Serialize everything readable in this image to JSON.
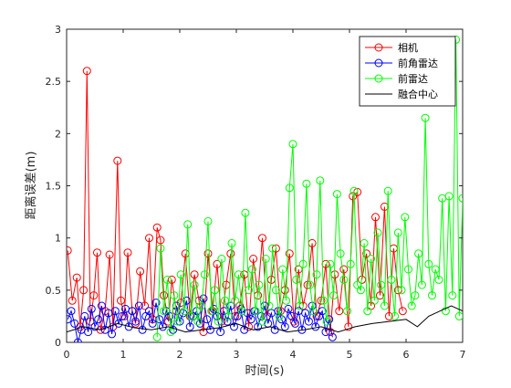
{
  "chart_data": {
    "type": "line",
    "xlabel": "时间(s)",
    "ylabel": "距离误差(m)",
    "xlim": [
      0,
      7
    ],
    "ylim": [
      0,
      3
    ],
    "xticks": [
      "0",
      "1",
      "2",
      "3",
      "4",
      "5",
      "6",
      "7"
    ],
    "yticks": [
      "0",
      "0.5",
      "1",
      "1.5",
      "2",
      "2.5",
      "3"
    ],
    "grid": false,
    "legend_position": "top-right",
    "series": [
      {
        "name": "相机",
        "color": "#ff0000",
        "marker": "circle",
        "x": [
          0.02,
          0.1,
          0.18,
          0.24,
          0.3,
          0.36,
          0.42,
          0.48,
          0.54,
          0.6,
          0.68,
          0.76,
          0.82,
          0.9,
          0.96,
          1.02,
          1.08,
          1.16,
          1.22,
          1.3,
          1.38,
          1.46,
          1.52,
          1.6,
          1.66,
          1.72,
          1.8,
          1.86,
          1.94,
          2.02,
          2.1,
          2.18,
          2.26,
          2.34,
          2.42,
          2.5,
          2.58,
          2.66,
          2.74,
          2.82,
          2.9,
          2.98,
          3.06,
          3.14,
          3.22,
          3.3,
          3.38,
          3.46,
          3.54,
          3.62,
          3.7,
          3.78,
          3.86,
          3.94,
          4.02,
          4.1,
          4.18,
          4.26,
          4.34,
          4.42,
          4.5,
          4.58,
          4.66,
          4.74,
          4.82,
          4.9,
          4.98,
          5.06,
          5.14,
          5.22,
          5.3,
          5.38,
          5.46,
          5.54,
          5.62,
          5.7,
          5.78,
          5.86,
          5.94
        ],
        "y": [
          0.88,
          0.4,
          0.62,
          0.15,
          0.5,
          2.6,
          0.2,
          0.45,
          0.86,
          0.12,
          0.3,
          0.84,
          0.15,
          1.74,
          0.4,
          0.25,
          0.86,
          0.3,
          0.18,
          0.68,
          0.35,
          1.0,
          0.22,
          1.1,
          0.98,
          0.45,
          0.2,
          0.6,
          0.3,
          0.38,
          0.85,
          0.25,
          0.65,
          0.4,
          0.1,
          0.85,
          0.3,
          0.75,
          0.2,
          0.55,
          0.85,
          0.25,
          0.35,
          0.65,
          0.15,
          0.8,
          0.45,
          1.0,
          0.25,
          0.6,
          0.9,
          0.3,
          0.5,
          0.85,
          0.2,
          0.7,
          0.35,
          0.55,
          0.95,
          0.25,
          0.4,
          0.75,
          0.1,
          0.65,
          0.3,
          0.7,
          0.15,
          1.4,
          1.44,
          0.6,
          0.85,
          0.35,
          1.2,
          0.45,
          1.3,
          0.25,
          0.9,
          0.5,
          0.3
        ]
      },
      {
        "name": "前角雷达",
        "color": "#0000ff",
        "marker": "circle",
        "x": [
          0.02,
          0.08,
          0.14,
          0.2,
          0.26,
          0.32,
          0.38,
          0.44,
          0.5,
          0.56,
          0.62,
          0.68,
          0.74,
          0.8,
          0.86,
          0.92,
          0.98,
          1.04,
          1.1,
          1.16,
          1.22,
          1.28,
          1.34,
          1.4,
          1.46,
          1.52,
          1.58,
          1.64,
          1.7,
          1.76,
          1.82,
          1.88,
          1.94,
          2.0,
          2.06,
          2.12,
          2.18,
          2.24,
          2.3,
          2.36,
          2.42,
          2.48,
          2.54,
          2.6,
          2.66,
          2.72,
          2.78,
          2.84,
          2.9,
          2.96,
          3.02,
          3.08,
          3.14,
          3.2,
          3.26,
          3.32,
          3.38,
          3.44,
          3.5,
          3.56,
          3.62,
          3.68,
          3.74,
          3.8,
          3.86,
          3.92,
          3.98,
          4.04,
          4.1,
          4.16,
          4.22,
          4.28,
          4.34,
          4.4,
          4.46,
          4.52,
          4.58,
          4.64,
          4.7
        ],
        "y": [
          0.22,
          0.3,
          0.18,
          0.0,
          0.12,
          0.25,
          0.1,
          0.32,
          0.15,
          0.22,
          0.35,
          0.12,
          0.28,
          0.08,
          0.3,
          0.18,
          0.25,
          0.32,
          0.15,
          0.3,
          0.2,
          0.35,
          0.12,
          0.25,
          0.3,
          0.18,
          0.38,
          0.22,
          0.15,
          0.3,
          0.25,
          0.12,
          0.35,
          0.2,
          0.28,
          0.4,
          0.15,
          0.25,
          0.3,
          0.18,
          0.42,
          0.22,
          0.12,
          0.32,
          0.25,
          0.1,
          0.3,
          0.2,
          0.35,
          0.15,
          0.25,
          0.32,
          0.12,
          0.28,
          0.22,
          0.3,
          0.15,
          0.25,
          0.35,
          0.18,
          0.28,
          0.12,
          0.3,
          0.22,
          0.15,
          0.32,
          0.25,
          0.18,
          0.3,
          0.12,
          0.28,
          0.2,
          0.35,
          0.15,
          0.25,
          0.3,
          0.1,
          0.22,
          0.05
        ]
      },
      {
        "name": "前雷达",
        "color": "#00ff00",
        "marker": "circle",
        "x": [
          1.6,
          1.66,
          1.72,
          1.78,
          1.84,
          1.9,
          1.96,
          2.02,
          2.08,
          2.14,
          2.2,
          2.26,
          2.32,
          2.38,
          2.44,
          2.5,
          2.56,
          2.62,
          2.68,
          2.74,
          2.8,
          2.86,
          2.92,
          2.98,
          3.04,
          3.1,
          3.16,
          3.22,
          3.28,
          3.34,
          3.4,
          3.46,
          3.52,
          3.58,
          3.64,
          3.7,
          3.76,
          3.82,
          3.88,
          3.94,
          4.0,
          4.06,
          4.12,
          4.18,
          4.24,
          4.3,
          4.36,
          4.42,
          4.48,
          4.54,
          4.6,
          4.66,
          4.72,
          4.78,
          4.84,
          4.9,
          4.96,
          5.02,
          5.08,
          5.14,
          5.2,
          5.26,
          5.32,
          5.38,
          5.44,
          5.5,
          5.56,
          5.62,
          5.68,
          5.74,
          5.8,
          5.86,
          5.92,
          5.98,
          6.04,
          6.1,
          6.16,
          6.22,
          6.28,
          6.34,
          6.4,
          6.46,
          6.52,
          6.58,
          6.64,
          6.7,
          6.76,
          6.82,
          6.88,
          6.94,
          7.0
        ],
        "y": [
          0.05,
          0.9,
          0.3,
          0.6,
          0.1,
          0.45,
          0.2,
          0.65,
          0.3,
          1.13,
          0.25,
          0.55,
          0.2,
          0.35,
          0.65,
          1.16,
          0.3,
          0.5,
          0.2,
          0.8,
          0.4,
          0.25,
          0.95,
          0.4,
          0.65,
          0.3,
          1.24,
          0.5,
          0.7,
          0.3,
          0.55,
          0.2,
          0.8,
          0.35,
          0.9,
          0.5,
          0.25,
          0.7,
          0.4,
          1.48,
          1.9,
          0.6,
          0.35,
          0.75,
          1.52,
          0.55,
          0.3,
          0.65,
          1.55,
          0.4,
          0.2,
          0.75,
          0.45,
          1.42,
          0.85,
          0.6,
          0.3,
          0.75,
          1.45,
          0.55,
          0.5,
          0.95,
          0.3,
          0.8,
          0.4,
          1.05,
          0.55,
          0.35,
          1.45,
          0.6,
          0.25,
          1.05,
          0.5,
          1.2,
          0.7,
          0.35,
          0.45,
          0.85,
          0.55,
          2.15,
          0.75,
          0.45,
          0.7,
          0.6,
          1.38,
          0.3,
          1.4,
          0.45,
          2.9,
          0.25,
          1.38
        ]
      },
      {
        "name": "融合中心",
        "color": "#000000",
        "marker": "none",
        "x": [
          0.0,
          0.3,
          0.6,
          0.9,
          1.2,
          1.5,
          1.8,
          2.1,
          2.4,
          2.7,
          3.0,
          3.3,
          3.6,
          3.9,
          4.2,
          4.5,
          4.8,
          5.1,
          5.4,
          5.7,
          6.0,
          6.2,
          6.4,
          6.6,
          6.8,
          7.0
        ],
        "y": [
          0.1,
          0.15,
          0.12,
          0.18,
          0.14,
          0.12,
          0.15,
          0.1,
          0.12,
          0.14,
          0.18,
          0.12,
          0.15,
          0.1,
          0.12,
          0.15,
          0.1,
          0.15,
          0.18,
          0.2,
          0.22,
          0.15,
          0.25,
          0.3,
          0.35,
          0.3
        ]
      }
    ]
  }
}
